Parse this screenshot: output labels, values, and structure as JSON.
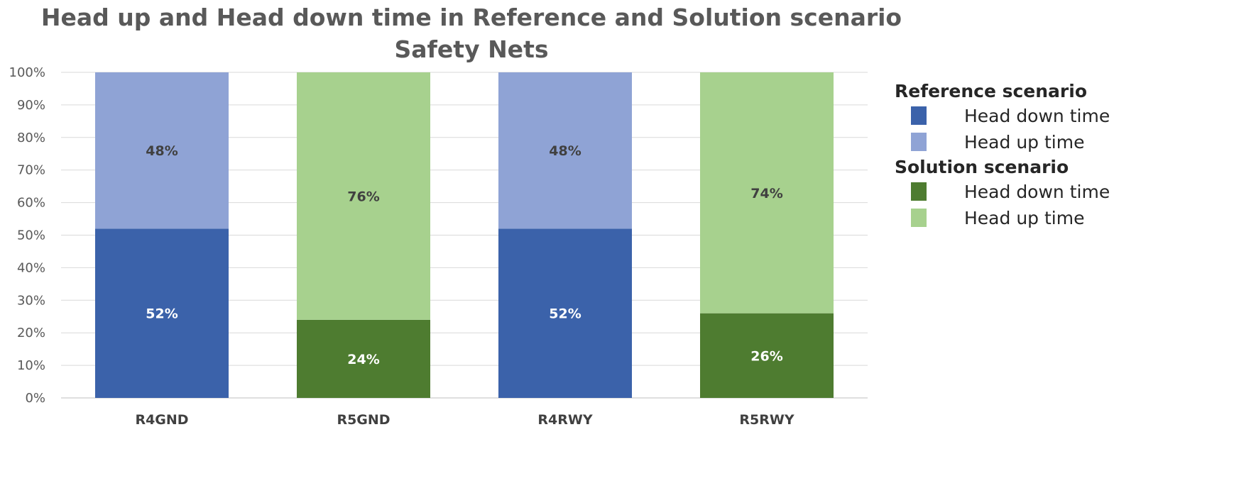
{
  "chart_data": {
    "type": "bar",
    "stacked": true,
    "title_line1": "Head up and Head down time in Reference and Solution scenario",
    "title_line2": "Safety Nets",
    "categories": [
      "R4GND",
      "R5GND",
      "R4RWY",
      "R5RWY"
    ],
    "yticks": [
      "0%",
      "10%",
      "20%",
      "30%",
      "40%",
      "50%",
      "60%",
      "70%",
      "80%",
      "90%",
      "100%"
    ],
    "ylim": [
      0,
      100
    ],
    "grid": true,
    "bars": [
      {
        "category": "R4GND",
        "scenario": "reference",
        "head_down": 52,
        "head_up": 48,
        "head_down_label": "52%",
        "head_up_label": "48%"
      },
      {
        "category": "R5GND",
        "scenario": "solution",
        "head_down": 24,
        "head_up": 76,
        "head_down_label": "24%",
        "head_up_label": "76%"
      },
      {
        "category": "R4RWY",
        "scenario": "reference",
        "head_down": 52,
        "head_up": 48,
        "head_down_label": "52%",
        "head_up_label": "48%"
      },
      {
        "category": "R5RWY",
        "scenario": "solution",
        "head_down": 26,
        "head_up": 74,
        "head_down_label": "26%",
        "head_up_label": "74%"
      }
    ],
    "colors": {
      "reference_head_down": "#3b62aa",
      "reference_head_up": "#8fa3d5",
      "solution_head_down": "#4e7c30",
      "solution_head_up": "#a7d18e"
    },
    "legend": {
      "position": "right",
      "groups": [
        {
          "title": "Reference scenario",
          "scenario": "reference",
          "items": [
            {
              "label": "Head down time",
              "key": "reference_head_down"
            },
            {
              "label": "Head up time",
              "key": "reference_head_up"
            }
          ]
        },
        {
          "title": "Solution scenario",
          "scenario": "solution",
          "items": [
            {
              "label": "Head down time",
              "key": "solution_head_down"
            },
            {
              "label": "Head up time",
              "key": "solution_head_up"
            }
          ]
        }
      ]
    }
  }
}
